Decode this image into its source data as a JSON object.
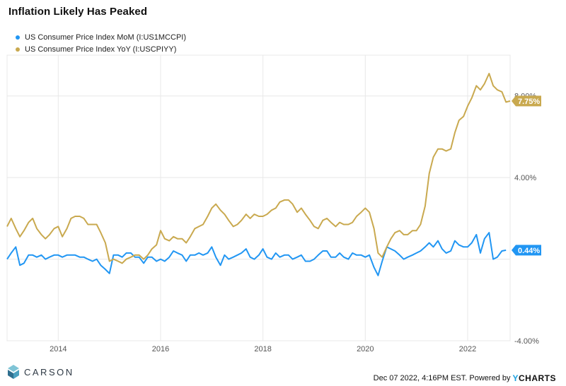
{
  "title": "Inflation Likely Has Peaked",
  "footer": {
    "logo_text": "CARSON",
    "stamp": "Dec 07 2022, 4:16PM EST. Powered by",
    "brand_y": "Y",
    "brand_rest": "CHARTS"
  },
  "colors": {
    "mom": "#2196f3",
    "yoy": "#c9a94f",
    "grid": "#e8e8e8",
    "axis_text": "#555555"
  },
  "chart_data": {
    "type": "line",
    "x_unit": "year",
    "xlim": [
      2013.0,
      2022.83
    ],
    "ylim": [
      -4.0,
      10.0
    ],
    "y_ticks": [
      -4.0,
      4.0,
      8.0
    ],
    "y_tick_labels": [
      "-4.00%",
      "4.00%",
      "8.00%"
    ],
    "x_ticks": [
      2014,
      2016,
      2018,
      2020,
      2022
    ],
    "x_tick_labels": [
      "2014",
      "2016",
      "2018",
      "2020",
      "2022"
    ],
    "grid": true,
    "legend_position": "top-left",
    "series": [
      {
        "name": "US Consumer Price Index MoM (I:US1MCCPI)",
        "color": "#2196f3",
        "end_label": "0.44%",
        "x": [
          2013.0,
          2013.08,
          2013.17,
          2013.25,
          2013.33,
          2013.42,
          2013.5,
          2013.58,
          2013.67,
          2013.75,
          2013.83,
          2013.92,
          2014.0,
          2014.08,
          2014.17,
          2014.25,
          2014.33,
          2014.42,
          2014.5,
          2014.58,
          2014.67,
          2014.75,
          2014.83,
          2014.92,
          2015.0,
          2015.08,
          2015.17,
          2015.25,
          2015.33,
          2015.42,
          2015.5,
          2015.58,
          2015.67,
          2015.75,
          2015.83,
          2015.92,
          2016.0,
          2016.08,
          2016.17,
          2016.25,
          2016.33,
          2016.42,
          2016.5,
          2016.58,
          2016.67,
          2016.75,
          2016.83,
          2016.92,
          2017.0,
          2017.08,
          2017.17,
          2017.25,
          2017.33,
          2017.42,
          2017.5,
          2017.58,
          2017.67,
          2017.75,
          2017.83,
          2017.92,
          2018.0,
          2018.08,
          2018.17,
          2018.25,
          2018.33,
          2018.42,
          2018.5,
          2018.58,
          2018.67,
          2018.75,
          2018.83,
          2018.92,
          2019.0,
          2019.08,
          2019.17,
          2019.25,
          2019.33,
          2019.42,
          2019.5,
          2019.58,
          2019.67,
          2019.75,
          2019.83,
          2019.92,
          2020.0,
          2020.08,
          2020.17,
          2020.25,
          2020.33,
          2020.42,
          2020.5,
          2020.58,
          2020.67,
          2020.75,
          2020.83,
          2020.92,
          2021.0,
          2021.08,
          2021.17,
          2021.25,
          2021.33,
          2021.42,
          2021.5,
          2021.58,
          2021.67,
          2021.75,
          2021.83,
          2021.92,
          2022.0,
          2022.08,
          2022.17,
          2022.25,
          2022.33,
          2022.42,
          2022.5,
          2022.58,
          2022.67,
          2022.75
        ],
        "values": [
          0.0,
          0.3,
          0.6,
          -0.3,
          -0.2,
          0.2,
          0.2,
          0.1,
          0.2,
          0.0,
          0.1,
          0.2,
          0.2,
          0.1,
          0.2,
          0.2,
          0.2,
          0.1,
          0.1,
          0.0,
          -0.1,
          0.0,
          -0.3,
          -0.5,
          -0.7,
          0.2,
          0.2,
          0.1,
          0.3,
          0.3,
          0.1,
          0.1,
          -0.2,
          0.1,
          0.1,
          -0.1,
          0.0,
          -0.1,
          0.1,
          0.4,
          0.3,
          0.2,
          -0.1,
          0.2,
          0.2,
          0.3,
          0.2,
          0.3,
          0.6,
          0.1,
          -0.3,
          0.2,
          0.0,
          0.1,
          0.2,
          0.3,
          0.5,
          0.1,
          0.0,
          0.2,
          0.5,
          0.1,
          0.0,
          0.3,
          0.1,
          0.2,
          0.2,
          0.0,
          0.1,
          0.2,
          -0.1,
          -0.1,
          0.0,
          0.2,
          0.4,
          0.4,
          0.1,
          0.1,
          0.3,
          0.1,
          0.0,
          0.3,
          0.2,
          0.2,
          0.1,
          0.2,
          -0.4,
          -0.8,
          -0.1,
          0.6,
          0.5,
          0.4,
          0.2,
          0.0,
          0.1,
          0.2,
          0.3,
          0.4,
          0.6,
          0.8,
          0.6,
          0.9,
          0.5,
          0.3,
          0.4,
          0.9,
          0.7,
          0.6,
          0.6,
          0.8,
          1.2,
          0.3,
          1.0,
          1.3,
          0.0,
          0.1,
          0.4,
          0.44
        ]
      },
      {
        "name": "US Consumer Price Index YoY (I:USCPIYY)",
        "color": "#c9a94f",
        "end_label": "7.75%",
        "x": [
          2013.0,
          2013.08,
          2013.17,
          2013.25,
          2013.33,
          2013.42,
          2013.5,
          2013.58,
          2013.67,
          2013.75,
          2013.83,
          2013.92,
          2014.0,
          2014.08,
          2014.17,
          2014.25,
          2014.33,
          2014.42,
          2014.5,
          2014.58,
          2014.67,
          2014.75,
          2014.83,
          2014.92,
          2015.0,
          2015.08,
          2015.17,
          2015.25,
          2015.33,
          2015.42,
          2015.5,
          2015.58,
          2015.67,
          2015.75,
          2015.83,
          2015.92,
          2016.0,
          2016.08,
          2016.17,
          2016.25,
          2016.33,
          2016.42,
          2016.5,
          2016.58,
          2016.67,
          2016.75,
          2016.83,
          2016.92,
          2017.0,
          2017.08,
          2017.17,
          2017.25,
          2017.33,
          2017.42,
          2017.5,
          2017.58,
          2017.67,
          2017.75,
          2017.83,
          2017.92,
          2018.0,
          2018.08,
          2018.17,
          2018.25,
          2018.33,
          2018.42,
          2018.5,
          2018.58,
          2018.67,
          2018.75,
          2018.83,
          2018.92,
          2019.0,
          2019.08,
          2019.17,
          2019.25,
          2019.33,
          2019.42,
          2019.5,
          2019.58,
          2019.67,
          2019.75,
          2019.83,
          2019.92,
          2020.0,
          2020.08,
          2020.17,
          2020.25,
          2020.33,
          2020.42,
          2020.5,
          2020.58,
          2020.67,
          2020.75,
          2020.83,
          2020.92,
          2021.0,
          2021.08,
          2021.17,
          2021.25,
          2021.33,
          2021.42,
          2021.5,
          2021.58,
          2021.67,
          2021.75,
          2021.83,
          2021.92,
          2022.0,
          2022.08,
          2022.17,
          2022.25,
          2022.33,
          2022.42,
          2022.5,
          2022.58,
          2022.67,
          2022.75,
          2022.83
        ],
        "values": [
          1.6,
          2.0,
          1.5,
          1.1,
          1.4,
          1.8,
          2.0,
          1.5,
          1.2,
          1.0,
          1.2,
          1.5,
          1.6,
          1.1,
          1.5,
          2.0,
          2.1,
          2.1,
          2.0,
          1.7,
          1.7,
          1.7,
          1.3,
          0.8,
          -0.1,
          0.0,
          -0.1,
          -0.2,
          0.0,
          0.1,
          0.2,
          0.2,
          0.0,
          0.2,
          0.5,
          0.7,
          1.4,
          1.0,
          0.9,
          1.1,
          1.0,
          1.0,
          0.8,
          1.1,
          1.5,
          1.6,
          1.7,
          2.1,
          2.5,
          2.7,
          2.4,
          2.2,
          1.9,
          1.6,
          1.7,
          1.9,
          2.2,
          2.0,
          2.2,
          2.1,
          2.1,
          2.2,
          2.4,
          2.5,
          2.8,
          2.9,
          2.9,
          2.7,
          2.3,
          2.5,
          2.2,
          1.9,
          1.6,
          1.5,
          1.9,
          2.0,
          1.8,
          1.6,
          1.8,
          1.7,
          1.7,
          1.8,
          2.1,
          2.3,
          2.5,
          2.3,
          1.5,
          0.3,
          0.1,
          0.6,
          1.0,
          1.3,
          1.4,
          1.2,
          1.2,
          1.4,
          1.4,
          1.7,
          2.6,
          4.2,
          5.0,
          5.4,
          5.4,
          5.3,
          5.4,
          6.2,
          6.8,
          7.0,
          7.5,
          7.9,
          8.5,
          8.3,
          8.6,
          9.1,
          8.5,
          8.3,
          8.2,
          7.7,
          7.75
        ]
      }
    ]
  }
}
